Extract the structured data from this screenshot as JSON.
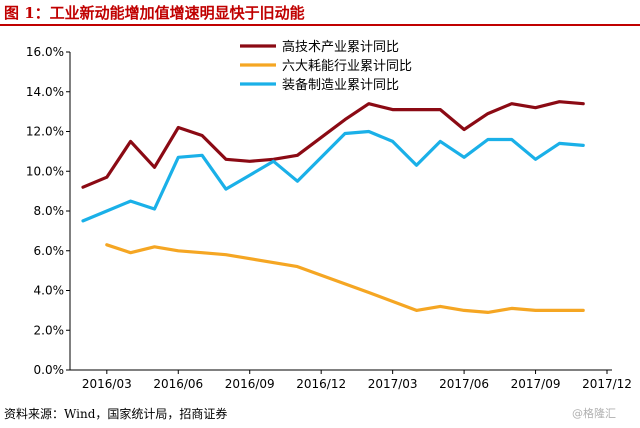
{
  "figure": {
    "title": "图 1：工业新动能增加值增速明显快于旧动能",
    "source": "资料来源：Wind，国家统计局，招商证券",
    "watermark": "@格隆汇"
  },
  "chart_data": {
    "type": "line",
    "title": "",
    "xlabel": "",
    "ylabel": "",
    "x": [
      "2016/02",
      "2016/03",
      "2016/04",
      "2016/05",
      "2016/06",
      "2016/07",
      "2016/08",
      "2016/09",
      "2016/10",
      "2016/11",
      "2016/12",
      "2017/01",
      "2017/02",
      "2017/03",
      "2017/04",
      "2017/05",
      "2017/06",
      "2017/07",
      "2017/08",
      "2017/09",
      "2017/10",
      "2017/11",
      "2017/12"
    ],
    "x_ticks": [
      "2016/03",
      "2016/06",
      "2016/09",
      "2016/12",
      "2017/03",
      "2017/06",
      "2017/09",
      "2017/12"
    ],
    "y_ticks": [
      "0.0%",
      "2.0%",
      "4.0%",
      "6.0%",
      "8.0%",
      "10.0%",
      "12.0%",
      "14.0%",
      "16.0%"
    ],
    "ylim": [
      0,
      16
    ],
    "grid": false,
    "legend_position": "top-center",
    "series": [
      {
        "name": "高技术产业累计同比",
        "color": "#8b0a14",
        "values": [
          9.2,
          9.7,
          11.5,
          10.2,
          12.2,
          11.8,
          10.6,
          10.5,
          10.6,
          10.8,
          null,
          12.6,
          13.4,
          13.1,
          13.1,
          13.1,
          12.1,
          12.9,
          13.4,
          13.2,
          13.5,
          13.4,
          null
        ]
      },
      {
        "name": "六大耗能行业累计同比",
        "color": "#f5a623",
        "values": [
          null,
          6.3,
          5.9,
          6.2,
          6.0,
          5.9,
          5.8,
          null,
          null,
          5.2,
          null,
          null,
          3.9,
          null,
          3.0,
          3.2,
          3.0,
          2.9,
          3.1,
          3.0,
          3.0,
          3.0,
          null
        ]
      },
      {
        "name": "装备制造业累计同比",
        "color": "#1ab0e8",
        "values": [
          7.5,
          8.0,
          8.5,
          8.1,
          10.7,
          10.8,
          9.1,
          9.8,
          10.5,
          9.5,
          null,
          11.9,
          12.0,
          11.5,
          10.3,
          11.5,
          10.7,
          11.6,
          11.6,
          10.6,
          11.4,
          11.3,
          null
        ]
      }
    ]
  }
}
